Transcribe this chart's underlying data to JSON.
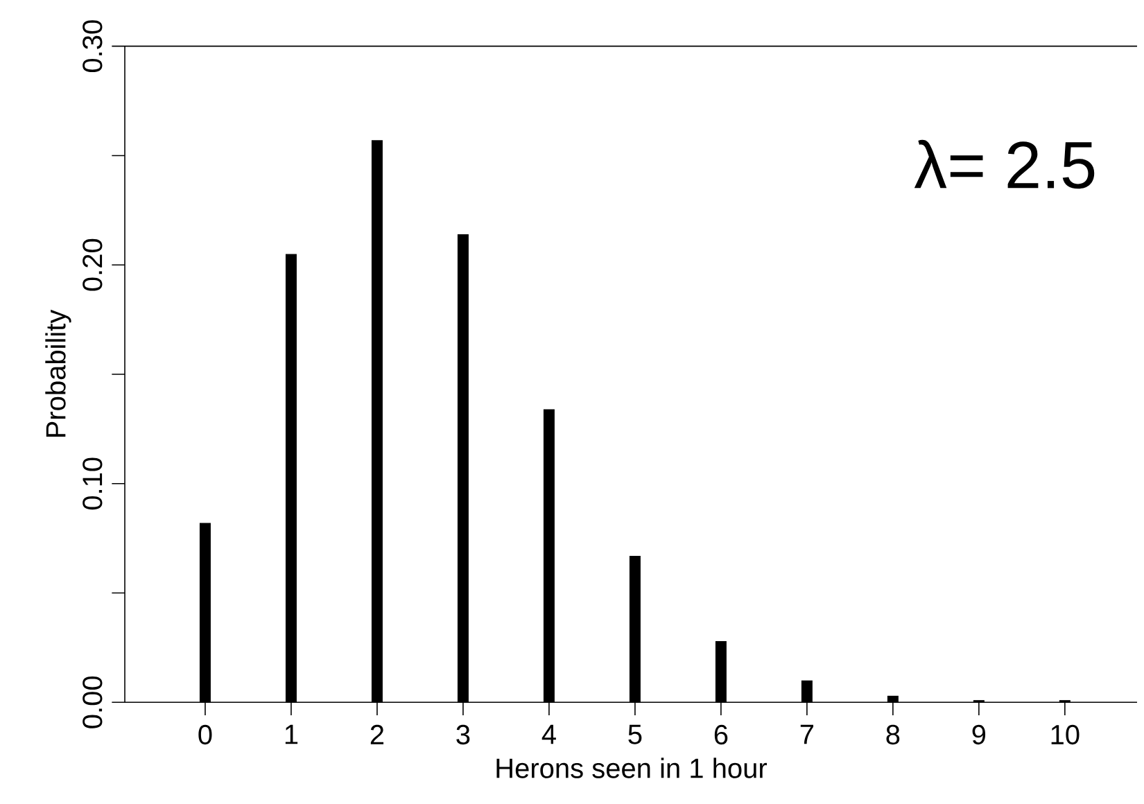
{
  "chart_data": {
    "type": "bar",
    "xlabel": "Herons seen in 1 hour",
    "ylabel": "Probability",
    "categories": [
      "0",
      "1",
      "2",
      "3",
      "4",
      "5",
      "6",
      "7",
      "8",
      "9",
      "10"
    ],
    "values": [
      0.082,
      0.205,
      0.257,
      0.214,
      0.134,
      0.067,
      0.028,
      0.01,
      0.003,
      0.001,
      0.001
    ],
    "color": "#000000",
    "ylim": [
      0,
      0.3
    ],
    "yticks": [
      {
        "value": 0,
        "label": "0.00"
      },
      {
        "value": 0.05,
        "label": null
      },
      {
        "value": 0.1,
        "label": "0.10"
      },
      {
        "value": 0.15,
        "label": null
      },
      {
        "value": 0.2,
        "label": "0.20"
      },
      {
        "value": 0.25,
        "label": null
      },
      {
        "value": 0.3,
        "label": "0.30"
      }
    ],
    "annotations": [
      "λ= 2.5"
    ]
  }
}
